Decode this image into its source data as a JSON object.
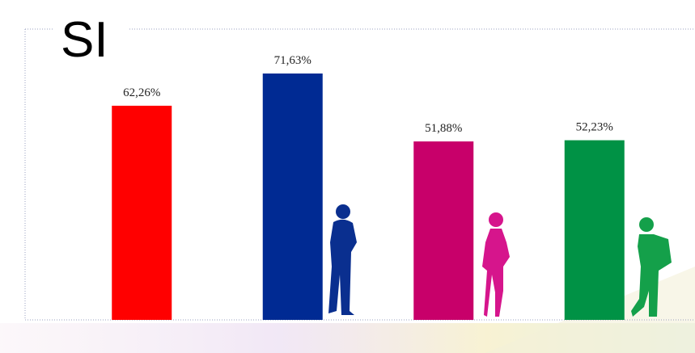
{
  "chart_data": {
    "type": "bar",
    "title": "SI",
    "values": [
      62.26,
      71.63,
      51.88,
      52.23
    ],
    "value_labels": [
      "62,26%",
      "71,63%",
      "51,88%",
      "52,23%"
    ],
    "colors": [
      "#ff0000",
      "#002a93",
      "#c8006a",
      "#009245"
    ]
  }
}
